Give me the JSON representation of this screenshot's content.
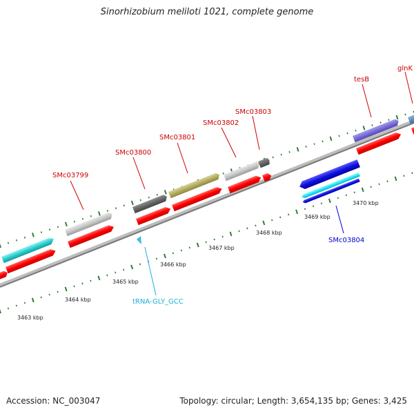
{
  "title": "Sinorhizobium meliloti 1021, complete genome",
  "footer": {
    "accession": "Accession: NC_003047",
    "summary": "Topology: circular; Length: 3,654,135 bp; Genes: 3,425"
  },
  "colors": {
    "backbone": "#8a8a8a",
    "tick": "#2e7d32",
    "cds": "#ff0000",
    "label_red": "#cc0000",
    "label_blue": "#0000cc",
    "label_cyan": "#1aaed6"
  },
  "tick_labels": [
    "3463 kbp",
    "3464 kbp",
    "3465 kbp",
    "3466 kbp",
    "3467 kbp",
    "3468 kbp",
    "3469 kbp",
    "3470 kbp"
  ],
  "gene_labels": [
    {
      "text": "SMc03799",
      "color": "red"
    },
    {
      "text": "SMc03800",
      "color": "red"
    },
    {
      "text": "SMc03801",
      "color": "red"
    },
    {
      "text": "SMc03802",
      "color": "red"
    },
    {
      "text": "SMc03803",
      "color": "red"
    },
    {
      "text": "tesB",
      "color": "red"
    },
    {
      "text": "glnK",
      "color": "red"
    },
    {
      "text": "SMc03804",
      "color": "blue"
    },
    {
      "text": "tRNA-GLY_GCC",
      "color": "cyan"
    }
  ]
}
